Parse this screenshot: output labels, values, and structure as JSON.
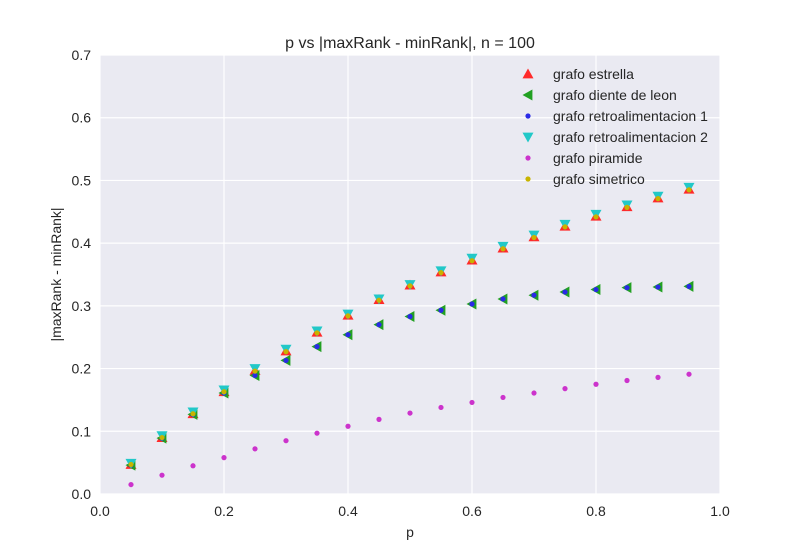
{
  "chart_data": {
    "type": "scatter",
    "title": "p vs |maxRank - minRank|, n = 100",
    "xlabel": "p",
    "ylabel": "|maxRank - minRank|",
    "xlim": [
      0.0,
      1.0
    ],
    "ylim": [
      0.0,
      0.7
    ],
    "xticks": [
      "0.0",
      "0.2",
      "0.4",
      "0.6",
      "0.8",
      "1.0"
    ],
    "yticks": [
      "0.0",
      "0.1",
      "0.2",
      "0.3",
      "0.4",
      "0.5",
      "0.6",
      "0.7"
    ],
    "grid": true,
    "legend_position": "top-right",
    "background": "#eaeaf2",
    "x": [
      0.05,
      0.1,
      0.15,
      0.2,
      0.25,
      0.3,
      0.35,
      0.4,
      0.45,
      0.5,
      0.55,
      0.6,
      0.65,
      0.7,
      0.75,
      0.8,
      0.85,
      0.9,
      0.95
    ],
    "series": [
      {
        "name": "grafo estrella",
        "marker": "triangle-up",
        "color": "#ff2a2a",
        "values": [
          0.047,
          0.09,
          0.128,
          0.163,
          0.197,
          0.228,
          0.258,
          0.285,
          0.31,
          0.333,
          0.354,
          0.373,
          0.392,
          0.41,
          0.427,
          0.443,
          0.458,
          0.472,
          0.486
        ]
      },
      {
        "name": "grafo diente de leon",
        "marker": "triangle-left",
        "color": "#22a022",
        "values": [
          0.046,
          0.089,
          0.127,
          0.161,
          0.189,
          0.213,
          0.235,
          0.254,
          0.27,
          0.283,
          0.293,
          0.303,
          0.311,
          0.317,
          0.322,
          0.326,
          0.329,
          0.33,
          0.331
        ]
      },
      {
        "name": "grafo retroalimentacion 1",
        "marker": "circle",
        "color": "#2a2ae6",
        "values": [
          0.046,
          0.089,
          0.127,
          0.161,
          0.189,
          0.213,
          0.235,
          0.254,
          0.27,
          0.283,
          0.293,
          0.303,
          0.311,
          0.317,
          0.322,
          0.326,
          0.329,
          0.33,
          0.331
        ]
      },
      {
        "name": "grafo retroalimentacion 2",
        "marker": "triangle-down",
        "color": "#22c8c8",
        "values": [
          0.049,
          0.093,
          0.131,
          0.166,
          0.2,
          0.231,
          0.26,
          0.287,
          0.311,
          0.334,
          0.356,
          0.376,
          0.395,
          0.413,
          0.43,
          0.446,
          0.461,
          0.475,
          0.489
        ]
      },
      {
        "name": "grafo piramide",
        "marker": "circle",
        "color": "#cc33cc",
        "values": [
          0.015,
          0.03,
          0.045,
          0.058,
          0.072,
          0.085,
          0.097,
          0.108,
          0.119,
          0.129,
          0.138,
          0.146,
          0.154,
          0.161,
          0.168,
          0.175,
          0.181,
          0.186,
          0.191
        ]
      },
      {
        "name": "grafo simetrico",
        "marker": "circle",
        "color": "#c8b400",
        "values": [
          0.047,
          0.09,
          0.128,
          0.163,
          0.196,
          0.227,
          0.257,
          0.284,
          0.309,
          0.332,
          0.353,
          0.372,
          0.391,
          0.409,
          0.426,
          0.442,
          0.457,
          0.471,
          0.485
        ]
      }
    ]
  }
}
